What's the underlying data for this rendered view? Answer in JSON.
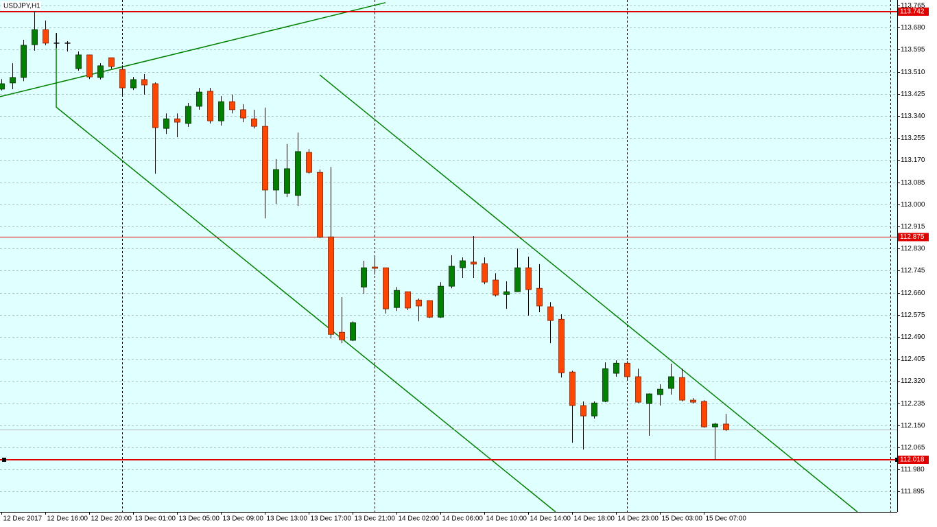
{
  "chart_data": {
    "type": "candlestick",
    "title": "USDJPY,H1",
    "categories": [
      "12 Dec 2017",
      null,
      null,
      null,
      "12 Dec 16:00",
      null,
      null,
      null,
      "12 Dec 20:00",
      null,
      null,
      null,
      "13 Dec 01:00",
      null,
      null,
      null,
      "13 Dec 05:00",
      null,
      null,
      null,
      "13 Dec 09:00",
      null,
      null,
      null,
      "13 Dec 13:00",
      null,
      null,
      null,
      "13 Dec 17:00",
      null,
      null,
      null,
      "13 Dec 21:00",
      null,
      null,
      null,
      "14 Dec 02:00",
      null,
      null,
      null,
      "14 Dec 06:00",
      null,
      null,
      null,
      "14 Dec 10:00",
      null,
      null,
      null,
      "14 Dec 14:00",
      null,
      null,
      null,
      "14 Dec 18:00",
      null,
      null,
      null,
      "14 Dec 23:00",
      null,
      null,
      null,
      "15 Dec 03:00",
      null,
      null,
      null,
      "15 Dec 07:00",
      null,
      null
    ],
    "open": [
      113.443,
      113.467,
      113.488,
      113.614,
      113.672,
      113.62,
      113.62,
      113.522,
      113.575,
      113.488,
      113.564,
      113.519,
      113.448,
      113.48,
      113.464,
      113.292,
      113.329,
      113.311,
      113.377,
      113.435,
      113.321,
      113.395,
      113.364,
      113.329,
      113.3,
      113.055,
      113.042,
      113.034,
      113.2,
      113.123,
      112.875,
      112.508,
      112.477,
      112.682,
      112.759,
      112.756,
      112.603,
      112.664,
      112.632,
      112.63,
      112.566,
      112.685,
      112.756,
      112.778,
      112.772,
      112.709,
      112.653,
      112.664,
      112.756,
      112.677,
      112.606,
      112.558,
      112.355,
      112.226,
      112.186,
      112.242,
      112.35,
      112.389,
      112.337,
      112.234,
      112.268,
      112.292,
      112.334,
      112.247,
      112.242,
      112.144,
      112.155
    ],
    "high": [
      113.482,
      113.543,
      113.633,
      113.742,
      113.707,
      113.659,
      113.628,
      113.588,
      113.575,
      113.543,
      113.564,
      113.535,
      113.49,
      113.501,
      113.469,
      113.35,
      113.35,
      113.39,
      113.448,
      113.448,
      113.416,
      113.422,
      113.385,
      113.364,
      113.372,
      113.174,
      113.232,
      113.276,
      113.213,
      113.134,
      113.144,
      112.643,
      112.55,
      112.783,
      112.796,
      112.756,
      112.682,
      112.664,
      112.638,
      112.63,
      112.701,
      112.804,
      112.796,
      112.878,
      112.796,
      112.735,
      112.704,
      112.83,
      112.799,
      112.77,
      112.624,
      112.577,
      112.36,
      112.242,
      112.242,
      112.392,
      112.4,
      112.397,
      112.368,
      112.273,
      112.308,
      112.387,
      112.368,
      112.255,
      112.247,
      112.16,
      112.194
    ],
    "low": [
      113.438,
      113.443,
      113.474,
      113.591,
      113.612,
      113.601,
      113.588,
      113.514,
      113.482,
      113.48,
      113.522,
      113.416,
      113.44,
      113.422,
      113.118,
      113.271,
      113.258,
      113.298,
      113.364,
      113.311,
      113.303,
      113.35,
      113.316,
      113.292,
      112.946,
      113.002,
      113.028,
      112.994,
      113.118,
      112.87,
      112.484,
      112.466,
      112.474,
      112.656,
      112.73,
      112.58,
      112.59,
      112.593,
      112.55,
      112.563,
      112.563,
      112.677,
      112.717,
      112.717,
      112.693,
      112.645,
      112.598,
      112.664,
      112.572,
      112.585,
      112.466,
      112.334,
      112.083,
      112.057,
      112.176,
      112.239,
      112.337,
      112.326,
      112.236,
      112.11,
      112.226,
      112.268,
      112.242,
      112.234,
      112.141,
      112.018,
      112.128
    ],
    "close": [
      113.464,
      113.488,
      113.612,
      113.672,
      113.62,
      113.62,
      113.618,
      113.575,
      113.49,
      113.533,
      113.53,
      113.448,
      113.48,
      113.459,
      113.295,
      113.329,
      113.316,
      113.377,
      113.432,
      113.321,
      113.395,
      113.364,
      113.332,
      113.3,
      113.055,
      113.134,
      113.137,
      113.203,
      113.123,
      112.873,
      112.5,
      112.479,
      112.545,
      112.756,
      112.754,
      112.598,
      112.669,
      112.601,
      112.609,
      112.566,
      112.685,
      112.762,
      112.783,
      112.77,
      112.701,
      112.651,
      112.664,
      112.756,
      112.672,
      112.609,
      112.553,
      112.352,
      112.226,
      112.186,
      112.236,
      112.368,
      112.389,
      112.337,
      112.239,
      112.271,
      112.289,
      112.337,
      112.247,
      112.239,
      112.144,
      112.155,
      112.133
    ],
    "up_color": "#008000",
    "down_color": "#ff4500",
    "xlim": [
      -0.125,
      81.625
    ],
    "ylim": [
      111.817,
      113.786
    ],
    "yticks": [
      {
        "value": 113.765,
        "label": "113.765"
      },
      {
        "value": 113.68,
        "label": "113.680"
      },
      {
        "value": 113.595,
        "label": "113.595"
      },
      {
        "value": 113.51,
        "label": "113.510"
      },
      {
        "value": 113.425,
        "label": "113.425"
      },
      {
        "value": 113.34,
        "label": "113.340"
      },
      {
        "value": 113.255,
        "label": "113.255"
      },
      {
        "value": 113.17,
        "label": "113.170"
      },
      {
        "value": 113.085,
        "label": "113.085"
      },
      {
        "value": 113,
        "label": "113.000"
      },
      {
        "value": 112.915,
        "label": "112.915"
      },
      {
        "value": 112.83,
        "label": "112.830"
      },
      {
        "value": 112.745,
        "label": "112.745"
      },
      {
        "value": 112.66,
        "label": "112.660"
      },
      {
        "value": 112.575,
        "label": "112.575"
      },
      {
        "value": 112.49,
        "label": "112.490"
      },
      {
        "value": 112.405,
        "label": "112.405"
      },
      {
        "value": 112.32,
        "label": "112.320"
      },
      {
        "value": 112.235,
        "label": "112.235"
      },
      {
        "value": 112.15,
        "label": "112.150"
      },
      {
        "value": 112.065,
        "label": "112.065"
      },
      {
        "value": 111.98,
        "label": "111.980"
      },
      {
        "value": 111.895,
        "label": "111.895"
      }
    ],
    "grid": true,
    "period_separators": [
      11,
      34,
      57,
      81
    ],
    "levels": [
      {
        "value": 113.742,
        "color": "#e00000",
        "width": 2
      },
      {
        "value": 112.875,
        "color": "#e00000",
        "width": 1
      },
      {
        "value": 112.018,
        "color": "#e00000",
        "width": 2
      }
    ],
    "bid": 112.133,
    "trendlines": [
      {
        "color": "#008000",
        "x": [
          -0.125,
          35
        ],
        "y": [
          113.414,
          113.776
        ]
      },
      {
        "color": "#008000",
        "x": [
          5,
          5,
          50.5
        ],
        "y": [
          113.659,
          113.374,
          111.817
        ]
      },
      {
        "color": "#008000",
        "x": [
          29,
          78
        ],
        "y": [
          113.498,
          111.817
        ]
      }
    ]
  }
}
